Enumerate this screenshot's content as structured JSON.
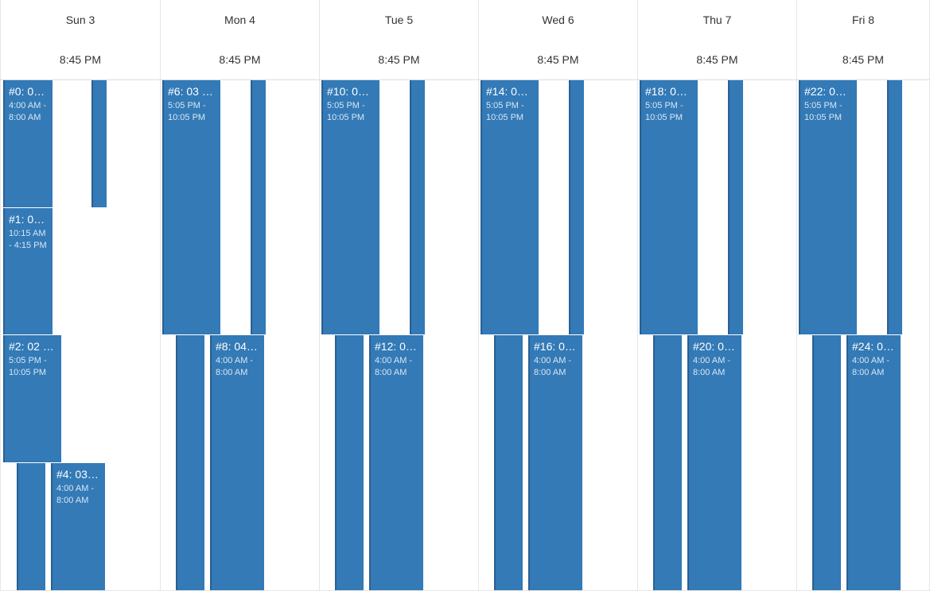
{
  "calendar": {
    "days": [
      {
        "label": "Sun 3",
        "time": "8:45 PM"
      },
      {
        "label": "Mon 4",
        "time": "8:45 PM"
      },
      {
        "label": "Tue 5",
        "time": "8:45 PM"
      },
      {
        "label": "Wed 6",
        "time": "8:45 PM"
      },
      {
        "label": "Thu 7",
        "time": "8:45 PM"
      },
      {
        "label": "Fri 8",
        "time": "8:45 PM"
      }
    ],
    "events": [
      {
        "day": 0,
        "title": "#0: 0…",
        "time": "4:00 AM - 8:00 AM"
      },
      {
        "day": 0,
        "title": "",
        "time": ""
      },
      {
        "day": 0,
        "title": "#1: 0…",
        "time": "10:15 AM - 4:15 PM"
      },
      {
        "day": 0,
        "title": "#2: 02 …",
        "time": "5:05 PM - 10:05 PM"
      },
      {
        "day": 0,
        "title": "",
        "time": ""
      },
      {
        "day": 0,
        "title": "#4: 03…",
        "time": "4:00 AM - 8:00 AM"
      },
      {
        "day": 1,
        "title": "#6: 03 …",
        "time": "5:05 PM - 10:05 PM"
      },
      {
        "day": 1,
        "title": "",
        "time": ""
      },
      {
        "day": 1,
        "title": "",
        "time": ""
      },
      {
        "day": 1,
        "title": "#8: 04…",
        "time": "4:00 AM - 8:00 AM"
      },
      {
        "day": 2,
        "title": "#10: 0…",
        "time": "5:05 PM - 10:05 PM"
      },
      {
        "day": 2,
        "title": "",
        "time": ""
      },
      {
        "day": 2,
        "title": "",
        "time": ""
      },
      {
        "day": 2,
        "title": "#12: 0…",
        "time": "4:00 AM - 8:00 AM"
      },
      {
        "day": 3,
        "title": "#14: 0…",
        "time": "5:05 PM - 10:05 PM"
      },
      {
        "day": 3,
        "title": "",
        "time": ""
      },
      {
        "day": 3,
        "title": "",
        "time": ""
      },
      {
        "day": 3,
        "title": "#16: 0…",
        "time": "4:00 AM - 8:00 AM"
      },
      {
        "day": 4,
        "title": "#18: 0…",
        "time": "5:05 PM - 10:05 PM"
      },
      {
        "day": 4,
        "title": "",
        "time": ""
      },
      {
        "day": 4,
        "title": "",
        "time": ""
      },
      {
        "day": 4,
        "title": "#20: 0…",
        "time": "4:00 AM - 8:00 AM"
      },
      {
        "day": 5,
        "title": "#22: 0…",
        "time": "5:05 PM - 10:05 PM"
      },
      {
        "day": 5,
        "title": "",
        "time": ""
      },
      {
        "day": 5,
        "title": "",
        "time": ""
      },
      {
        "day": 5,
        "title": "#24: 0…",
        "time": "4:00 AM - 8:00 AM"
      }
    ],
    "colors": {
      "event": "#337ab7",
      "border": "#2a5f91",
      "grid": "#e6e6e6"
    }
  }
}
